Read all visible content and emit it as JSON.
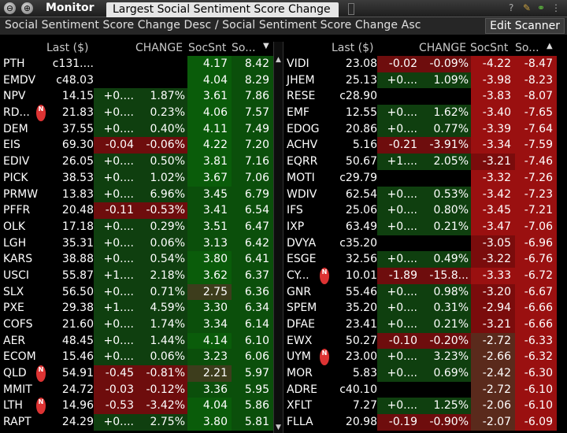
{
  "window": {
    "title": "Monitor",
    "tab": "Largest Social Sentiment Score Change",
    "subtitle": "Social Sentiment Score Change Desc / Social Sentiment Score Change Asc",
    "edit_button": "Edit Scanner"
  },
  "columns": {
    "last": "Last ($)",
    "change": "CHANGE",
    "soc": "SocSnt",
    "soc2": "So..."
  },
  "left_rows": [
    {
      "sym": "PTH",
      "last": "c131....",
      "chg": "",
      "pct": "",
      "soc": "4.17",
      "soc2": "8.42",
      "tone": "gray",
      "news": false
    },
    {
      "sym": "EMDV",
      "last": "c48.03",
      "chg": "",
      "pct": "",
      "soc": "4.04",
      "soc2": "8.29",
      "tone": "gray",
      "news": false
    },
    {
      "sym": "NPV",
      "last": "14.15",
      "chg": "+0....",
      "pct": "1.87%",
      "soc": "3.61",
      "soc2": "7.86",
      "tone": "green",
      "news": false
    },
    {
      "sym": "RD...",
      "last": "21.83",
      "chg": "+0....",
      "pct": "0.23%",
      "soc": "4.06",
      "soc2": "7.57",
      "tone": "green",
      "news": true
    },
    {
      "sym": "DEM",
      "last": "37.55",
      "chg": "+0....",
      "pct": "0.40%",
      "soc": "4.11",
      "soc2": "7.49",
      "tone": "green",
      "news": false
    },
    {
      "sym": "EIS",
      "last": "69.30",
      "chg": "-0.04",
      "pct": "-0.06%",
      "soc": "4.22",
      "soc2": "7.20",
      "tone": "red",
      "news": false
    },
    {
      "sym": "EDIV",
      "last": "26.05",
      "chg": "+0....",
      "pct": "0.50%",
      "soc": "3.81",
      "soc2": "7.16",
      "tone": "green",
      "news": false
    },
    {
      "sym": "PICK",
      "last": "38.53",
      "chg": "+0....",
      "pct": "1.02%",
      "soc": "3.67",
      "soc2": "7.06",
      "tone": "green",
      "news": false
    },
    {
      "sym": "PRMW",
      "last": "13.83",
      "chg": "+0....",
      "pct": "6.96%",
      "soc": "3.45",
      "soc2": "6.79",
      "tone": "green",
      "news": false
    },
    {
      "sym": "PFFR",
      "last": "20.48",
      "chg": "-0.11",
      "pct": "-0.53%",
      "soc": "3.41",
      "soc2": "6.54",
      "tone": "red",
      "news": false
    },
    {
      "sym": "OLK",
      "last": "17.18",
      "chg": "+0....",
      "pct": "0.29%",
      "soc": "3.51",
      "soc2": "6.47",
      "tone": "green",
      "news": false
    },
    {
      "sym": "LGH",
      "last": "35.31",
      "chg": "+0....",
      "pct": "0.06%",
      "soc": "3.13",
      "soc2": "6.42",
      "tone": "green",
      "news": false
    },
    {
      "sym": "KARS",
      "last": "38.88",
      "chg": "+0....",
      "pct": "0.54%",
      "soc": "3.80",
      "soc2": "6.41",
      "tone": "green",
      "news": false
    },
    {
      "sym": "USCI",
      "last": "55.87",
      "chg": "+1....",
      "pct": "2.18%",
      "soc": "3.62",
      "soc2": "6.37",
      "tone": "green",
      "news": false
    },
    {
      "sym": "SLX",
      "last": "56.50",
      "chg": "+0....",
      "pct": "0.71%",
      "soc": "2.75",
      "soc2": "6.36",
      "tone": "green",
      "news": false
    },
    {
      "sym": "PXE",
      "last": "29.38",
      "chg": "+1....",
      "pct": "4.59%",
      "soc": "3.30",
      "soc2": "6.34",
      "tone": "green",
      "news": false
    },
    {
      "sym": "COFS",
      "last": "21.60",
      "chg": "+0....",
      "pct": "1.74%",
      "soc": "3.34",
      "soc2": "6.14",
      "tone": "green",
      "news": false
    },
    {
      "sym": "AER",
      "last": "48.45",
      "chg": "+0....",
      "pct": "1.44%",
      "soc": "4.14",
      "soc2": "6.10",
      "tone": "green",
      "news": false
    },
    {
      "sym": "ECOM",
      "last": "15.46",
      "chg": "+0....",
      "pct": "0.06%",
      "soc": "3.23",
      "soc2": "6.06",
      "tone": "green",
      "news": false
    },
    {
      "sym": "QLD",
      "last": "54.91",
      "chg": "-0.45",
      "pct": "-0.81%",
      "soc": "2.21",
      "soc2": "5.97",
      "tone": "red",
      "news": true
    },
    {
      "sym": "MMIT",
      "last": "24.72",
      "chg": "-0.03",
      "pct": "-0.12%",
      "soc": "3.36",
      "soc2": "5.95",
      "tone": "red",
      "news": false
    },
    {
      "sym": "LTH",
      "last": "14.96",
      "chg": "-0.53",
      "pct": "-3.42%",
      "soc": "4.04",
      "soc2": "5.86",
      "tone": "red",
      "news": true
    },
    {
      "sym": "RAPT",
      "last": "24.29",
      "chg": "+0....",
      "pct": "2.75%",
      "soc": "3.80",
      "soc2": "5.81",
      "tone": "green",
      "news": false
    }
  ],
  "right_rows": [
    {
      "sym": "VIDI",
      "last": "23.08",
      "chg": "-0.02",
      "pct": "-0.09%",
      "soc": "-4.22",
      "soc2": "-8.47",
      "tone": "red",
      "news": false
    },
    {
      "sym": "JHEM",
      "last": "25.13",
      "chg": "+0....",
      "pct": "1.09%",
      "soc": "-3.98",
      "soc2": "-8.23",
      "tone": "green",
      "news": false
    },
    {
      "sym": "RESE",
      "last": "c28.90",
      "chg": "",
      "pct": "",
      "soc": "-3.83",
      "soc2": "-8.07",
      "tone": "gray",
      "news": false
    },
    {
      "sym": "EMF",
      "last": "12.55",
      "chg": "+0....",
      "pct": "1.62%",
      "soc": "-3.40",
      "soc2": "-7.65",
      "tone": "green",
      "news": false
    },
    {
      "sym": "EDOG",
      "last": "20.86",
      "chg": "+0....",
      "pct": "0.77%",
      "soc": "-3.39",
      "soc2": "-7.64",
      "tone": "green",
      "news": false
    },
    {
      "sym": "ACHV",
      "last": "5.16",
      "chg": "-0.21",
      "pct": "-3.91%",
      "soc": "-3.34",
      "soc2": "-7.59",
      "tone": "red",
      "news": false
    },
    {
      "sym": "EQRR",
      "last": "50.67",
      "chg": "+1....",
      "pct": "2.05%",
      "soc": "-3.21",
      "soc2": "-7.46",
      "tone": "green",
      "news": false
    },
    {
      "sym": "MOTI",
      "last": "c29.79",
      "chg": "",
      "pct": "",
      "soc": "-3.32",
      "soc2": "-7.26",
      "tone": "gray",
      "news": false
    },
    {
      "sym": "WDIV",
      "last": "62.54",
      "chg": "+0....",
      "pct": "0.53%",
      "soc": "-3.42",
      "soc2": "-7.23",
      "tone": "green",
      "news": false
    },
    {
      "sym": "IFS",
      "last": "25.06",
      "chg": "+0....",
      "pct": "0.80%",
      "soc": "-3.45",
      "soc2": "-7.21",
      "tone": "green",
      "news": false
    },
    {
      "sym": "IXP",
      "last": "63.49",
      "chg": "+0....",
      "pct": "0.21%",
      "soc": "-3.47",
      "soc2": "-7.06",
      "tone": "green",
      "news": false
    },
    {
      "sym": "DVYA",
      "last": "c35.20",
      "chg": "",
      "pct": "",
      "soc": "-3.05",
      "soc2": "-6.96",
      "tone": "gray",
      "news": false
    },
    {
      "sym": "ESGE",
      "last": "32.56",
      "chg": "+0....",
      "pct": "0.49%",
      "soc": "-3.22",
      "soc2": "-6.76",
      "tone": "green",
      "news": false
    },
    {
      "sym": "CY...",
      "last": "10.01",
      "chg": "-1.89",
      "pct": "-15.8...",
      "soc": "-3.33",
      "soc2": "-6.72",
      "tone": "red",
      "news": true
    },
    {
      "sym": "GNR",
      "last": "55.46",
      "chg": "+0....",
      "pct": "0.98%",
      "soc": "-3.20",
      "soc2": "-6.67",
      "tone": "green",
      "news": false
    },
    {
      "sym": "SPEM",
      "last": "35.20",
      "chg": "+0....",
      "pct": "0.31%",
      "soc": "-2.94",
      "soc2": "-6.66",
      "tone": "green",
      "news": false
    },
    {
      "sym": "DFAE",
      "last": "23.41",
      "chg": "+0....",
      "pct": "0.21%",
      "soc": "-3.21",
      "soc2": "-6.66",
      "tone": "green",
      "news": false
    },
    {
      "sym": "EWX",
      "last": "50.27",
      "chg": "-0.10",
      "pct": "-0.20%",
      "soc": "-2.72",
      "soc2": "-6.33",
      "tone": "red",
      "news": false
    },
    {
      "sym": "UYM",
      "last": "23.00",
      "chg": "+0....",
      "pct": "3.23%",
      "soc": "-2.66",
      "soc2": "-6.32",
      "tone": "green",
      "news": true
    },
    {
      "sym": "MOR",
      "last": "5.83",
      "chg": "+0....",
      "pct": "0.69%",
      "soc": "-2.42",
      "soc2": "-6.30",
      "tone": "green",
      "news": false
    },
    {
      "sym": "ADRE",
      "last": "c40.10",
      "chg": "",
      "pct": "",
      "soc": "-2.72",
      "soc2": "-6.10",
      "tone": "gray",
      "news": false
    },
    {
      "sym": "XFLT",
      "last": "7.27",
      "chg": "+0....",
      "pct": "1.25%",
      "soc": "-2.06",
      "soc2": "-6.10",
      "tone": "green",
      "news": false
    },
    {
      "sym": "FLLA",
      "last": "20.98",
      "chg": "-0.19",
      "pct": "-0.90%",
      "soc": "-2.07",
      "soc2": "-6.09",
      "tone": "red",
      "news": false
    }
  ]
}
